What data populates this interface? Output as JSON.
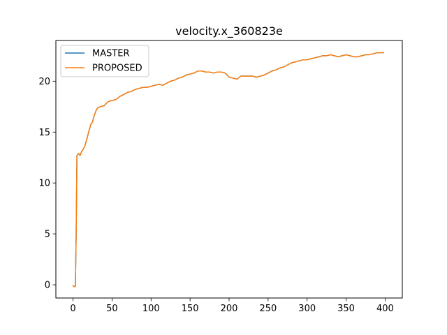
{
  "chart_data": {
    "type": "line",
    "title": "velocity.x_360823e",
    "xlabel": "",
    "ylabel": "",
    "xlim": [
      -22,
      422
    ],
    "ylim": [
      -1.3,
      24.0
    ],
    "x_ticks": [
      0,
      50,
      100,
      150,
      200,
      250,
      300,
      350,
      400
    ],
    "y_ticks": [
      0,
      5,
      10,
      15,
      20
    ],
    "grid": false,
    "legend_location": "upper-left",
    "series": [
      {
        "name": "MASTER",
        "color": "#1f77b4",
        "x": [
          0,
          2,
          3,
          4,
          5,
          7,
          9,
          11,
          13,
          15,
          18,
          20,
          23,
          25,
          27,
          30,
          32,
          35,
          40,
          45,
          50,
          55,
          60,
          65,
          70,
          75,
          80,
          85,
          90,
          95,
          100,
          105,
          110,
          115,
          120,
          125,
          130,
          135,
          140,
          145,
          150,
          155,
          160,
          165,
          170,
          175,
          180,
          185,
          190,
          195,
          200,
          205,
          210,
          215,
          220,
          225,
          230,
          235,
          240,
          245,
          250,
          255,
          260,
          265,
          270,
          275,
          280,
          285,
          290,
          295,
          300,
          305,
          310,
          315,
          320,
          325,
          330,
          335,
          340,
          345,
          350,
          355,
          360,
          365,
          370,
          375,
          380,
          385,
          390,
          395,
          398
        ],
        "y": [
          -0.1,
          -0.2,
          -0.1,
          5.0,
          12.7,
          12.9,
          12.7,
          13.1,
          13.3,
          13.6,
          14.4,
          15.0,
          15.8,
          16.0,
          16.6,
          17.2,
          17.4,
          17.5,
          17.6,
          18.0,
          18.1,
          18.2,
          18.5,
          18.7,
          18.9,
          19.0,
          19.2,
          19.3,
          19.4,
          19.4,
          19.5,
          19.6,
          19.7,
          19.6,
          19.8,
          20.0,
          20.1,
          20.3,
          20.4,
          20.6,
          20.7,
          20.8,
          21.0,
          21.0,
          20.9,
          20.9,
          20.8,
          20.9,
          20.9,
          20.8,
          20.4,
          20.3,
          20.2,
          20.5,
          20.5,
          20.5,
          20.5,
          20.4,
          20.5,
          20.6,
          20.8,
          21.0,
          21.1,
          21.3,
          21.4,
          21.6,
          21.8,
          21.9,
          22.0,
          22.1,
          22.1,
          22.2,
          22.3,
          22.4,
          22.5,
          22.5,
          22.6,
          22.5,
          22.4,
          22.5,
          22.6,
          22.5,
          22.4,
          22.4,
          22.5,
          22.6,
          22.6,
          22.7,
          22.8,
          22.8,
          22.8
        ]
      },
      {
        "name": "PROPOSED",
        "color": "#ff7f0e",
        "x": [
          0,
          2,
          3,
          4,
          5,
          7,
          9,
          11,
          13,
          15,
          18,
          20,
          23,
          25,
          27,
          30,
          32,
          35,
          40,
          45,
          50,
          55,
          60,
          65,
          70,
          75,
          80,
          85,
          90,
          95,
          100,
          105,
          110,
          115,
          120,
          125,
          130,
          135,
          140,
          145,
          150,
          155,
          160,
          165,
          170,
          175,
          180,
          185,
          190,
          195,
          200,
          205,
          210,
          215,
          220,
          225,
          230,
          235,
          240,
          245,
          250,
          255,
          260,
          265,
          270,
          275,
          280,
          285,
          290,
          295,
          300,
          305,
          310,
          315,
          320,
          325,
          330,
          335,
          340,
          345,
          350,
          355,
          360,
          365,
          370,
          375,
          380,
          385,
          390,
          395,
          398
        ],
        "y": [
          -0.1,
          -0.2,
          -0.1,
          5.0,
          12.7,
          12.9,
          12.7,
          13.1,
          13.3,
          13.6,
          14.4,
          15.0,
          15.8,
          16.0,
          16.6,
          17.2,
          17.4,
          17.5,
          17.6,
          18.0,
          18.1,
          18.2,
          18.5,
          18.7,
          18.9,
          19.0,
          19.2,
          19.3,
          19.4,
          19.4,
          19.5,
          19.6,
          19.7,
          19.6,
          19.8,
          20.0,
          20.1,
          20.3,
          20.4,
          20.6,
          20.7,
          20.8,
          21.0,
          21.0,
          20.9,
          20.9,
          20.8,
          20.9,
          20.9,
          20.8,
          20.4,
          20.3,
          20.2,
          20.5,
          20.5,
          20.5,
          20.5,
          20.4,
          20.5,
          20.6,
          20.8,
          21.0,
          21.1,
          21.3,
          21.4,
          21.6,
          21.8,
          21.9,
          22.0,
          22.1,
          22.1,
          22.2,
          22.3,
          22.4,
          22.5,
          22.5,
          22.6,
          22.5,
          22.4,
          22.5,
          22.6,
          22.5,
          22.4,
          22.4,
          22.5,
          22.6,
          22.6,
          22.7,
          22.8,
          22.8,
          22.8
        ]
      }
    ]
  }
}
